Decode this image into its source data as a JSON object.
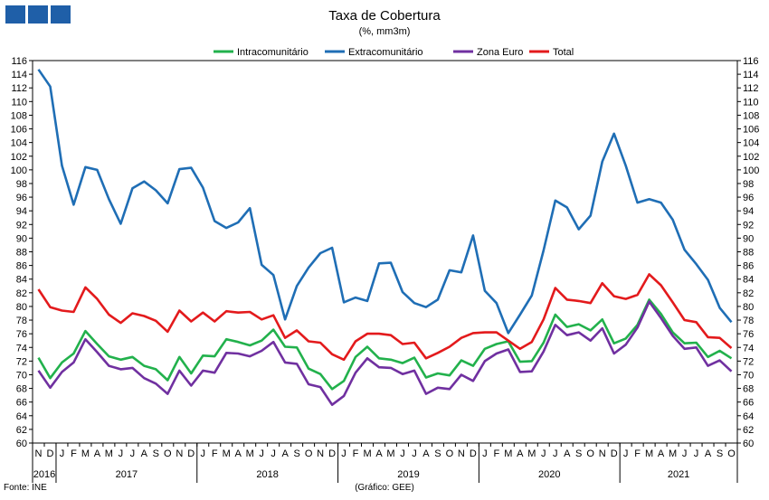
{
  "logo": {
    "icon": "gee-logo-icon",
    "color": "#1f5fa8"
  },
  "header": {
    "title": "Taxa de Cobertura",
    "subtitle": "(%, mm3m)"
  },
  "footer": {
    "source": "Fonte: INE",
    "credit": "(Gráfico: GEE)"
  },
  "chart_data": {
    "type": "line",
    "title": "Taxa de Cobertura",
    "subtitle": "(%, mm3m)",
    "xlabel": "",
    "ylabel": "",
    "ylim": [
      60,
      116
    ],
    "ytick_step": 2,
    "y_axes": "left and right",
    "grid": false,
    "legend": "top",
    "month_labels": [
      "N",
      "D",
      "J",
      "F",
      "M",
      "A",
      "M",
      "J",
      "J",
      "A",
      "S",
      "O",
      "N",
      "D",
      "J",
      "F",
      "M",
      "A",
      "M",
      "J",
      "J",
      "A",
      "S",
      "O",
      "N",
      "D",
      "J",
      "F",
      "M",
      "A",
      "M",
      "J",
      "J",
      "A",
      "S",
      "O",
      "N",
      "D",
      "J",
      "F",
      "M",
      "A",
      "M",
      "J",
      "J",
      "A",
      "S",
      "O",
      "N",
      "D",
      "J",
      "F",
      "M",
      "A",
      "M",
      "J",
      "J",
      "A",
      "S",
      "O"
    ],
    "year_labels": [
      {
        "label": "2016",
        "start": 0,
        "end": 1
      },
      {
        "label": "2017",
        "start": 2,
        "end": 13
      },
      {
        "label": "2018",
        "start": 14,
        "end": 25
      },
      {
        "label": "2019",
        "start": 26,
        "end": 37
      },
      {
        "label": "2020",
        "start": 38,
        "end": 49
      },
      {
        "label": "2021",
        "start": 50,
        "end": 59
      }
    ],
    "series": [
      {
        "name": "Intracomunitário",
        "color": "#22b14c",
        "values": [
          72.5,
          69.5,
          71.8,
          73.1,
          76.4,
          74.5,
          72.7,
          72.2,
          72.6,
          71.3,
          70.8,
          69.2,
          72.6,
          70.2,
          72.8,
          72.7,
          75.2,
          74.8,
          74.3,
          75.0,
          76.6,
          74.1,
          74.0,
          70.9,
          70.1,
          67.9,
          69.1,
          72.6,
          74.1,
          72.4,
          72.2,
          71.7,
          72.5,
          69.6,
          70.2,
          69.9,
          72.1,
          71.3,
          73.8,
          74.5,
          74.9,
          71.9,
          72.0,
          74.7,
          78.8,
          77.0,
          77.4,
          76.5,
          78.1,
          74.6,
          75.3,
          77.3,
          81.0,
          78.9,
          76.2,
          74.6,
          74.7,
          72.6,
          73.5,
          72.4
        ]
      },
      {
        "name": "Extracomunitário",
        "color": "#1f6eb5",
        "values": [
          114.7,
          112.2,
          100.6,
          94.9,
          100.4,
          100.0,
          95.7,
          92.1,
          97.3,
          98.3,
          97.0,
          95.1,
          100.1,
          100.3,
          97.4,
          92.5,
          91.5,
          92.3,
          94.4,
          86.1,
          84.6,
          78.1,
          83.0,
          85.7,
          87.8,
          88.6,
          80.6,
          81.3,
          80.8,
          86.3,
          86.4,
          82.1,
          80.5,
          79.9,
          81.0,
          85.3,
          85.0,
          90.4,
          82.3,
          80.5,
          76.1,
          78.8,
          81.6,
          88.2,
          95.5,
          94.5,
          91.3,
          93.3,
          101.2,
          105.3,
          100.6,
          95.2,
          95.7,
          95.2,
          92.7,
          88.3,
          86.2,
          83.9,
          79.8,
          77.7
        ]
      },
      {
        "name": "Zona Euro",
        "color": "#7030a0",
        "values": [
          70.6,
          68.1,
          70.4,
          71.8,
          75.2,
          73.3,
          71.3,
          70.8,
          71.0,
          69.5,
          68.7,
          67.2,
          70.6,
          68.4,
          70.6,
          70.3,
          73.2,
          73.1,
          72.7,
          73.5,
          74.8,
          71.8,
          71.6,
          68.6,
          68.2,
          65.6,
          66.9,
          70.3,
          72.4,
          71.1,
          71.0,
          70.1,
          70.6,
          67.2,
          68.1,
          67.9,
          70.0,
          69.1,
          72.0,
          73.1,
          73.7,
          70.4,
          70.5,
          73.4,
          77.3,
          75.8,
          76.2,
          75.0,
          76.8,
          73.1,
          74.4,
          76.9,
          80.7,
          78.3,
          75.7,
          73.8,
          74.0,
          71.3,
          72.1,
          70.5
        ]
      },
      {
        "name": "Total",
        "color": "#e31a1c",
        "values": [
          82.5,
          79.9,
          79.4,
          79.2,
          82.8,
          81.1,
          78.8,
          77.6,
          79.0,
          78.6,
          77.9,
          76.3,
          79.4,
          77.8,
          79.1,
          77.8,
          79.3,
          79.1,
          79.2,
          78.1,
          78.7,
          75.4,
          76.5,
          74.9,
          74.7,
          73.0,
          72.2,
          74.9,
          76.0,
          76.0,
          75.8,
          74.5,
          74.7,
          72.4,
          73.2,
          74.1,
          75.4,
          76.1,
          76.2,
          76.2,
          75.0,
          73.8,
          74.8,
          78.1,
          82.7,
          81.0,
          80.8,
          80.5,
          83.4,
          81.5,
          81.1,
          81.7,
          84.7,
          83.1,
          80.6,
          78.0,
          77.7,
          75.5,
          75.4,
          73.9
        ]
      }
    ]
  }
}
